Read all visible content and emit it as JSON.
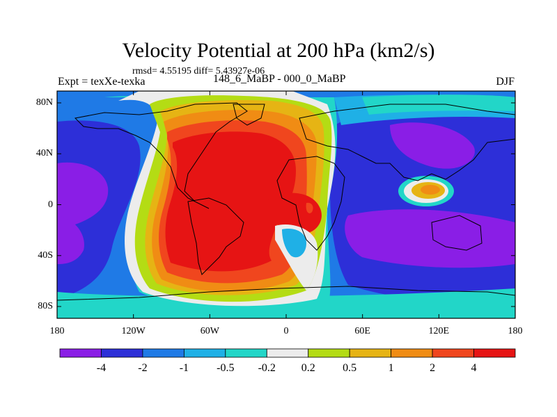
{
  "chart_data": {
    "type": "heatmap",
    "title": "Velocity Potential at 200 hPa (km2/s)",
    "stats_text": "rmsd= 4.55195 diff= 5.43927e-06",
    "left_label": "Expt = texXe-texka",
    "center_label": "148_6_MaBP - 000_0_MaBP",
    "right_label": "DJF",
    "x_ticks": [
      "180",
      "120W",
      "60W",
      "0",
      "60E",
      "120E",
      "180"
    ],
    "y_ticks": [
      "80N",
      "40N",
      "0",
      "40S",
      "80S"
    ],
    "xlim": [
      -180,
      180
    ],
    "ylim": [
      -90,
      90
    ],
    "colorbar": {
      "levels": [
        "-4",
        "-2",
        "-1",
        "-0.5",
        "-0.2",
        "0.2",
        "0.5",
        "1",
        "2",
        "4"
      ],
      "colors": [
        "#8a1ee6",
        "#2d2fd8",
        "#1f7ae6",
        "#1fb0e6",
        "#22d6c8",
        "#ececec",
        "#b4dc14",
        "#e6b414",
        "#f08c14",
        "#f0461e",
        "#e61414"
      ]
    }
  }
}
